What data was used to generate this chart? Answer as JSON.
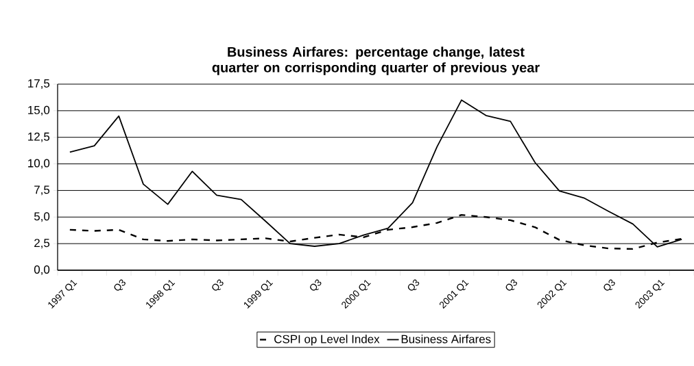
{
  "chart_data": {
    "type": "line",
    "title": "Business Airfares: percentage change, latest quarter on corrisponding quarter of previous year",
    "categories": [
      "1997 Q1",
      null,
      "Q3",
      null,
      "1998 Q1",
      null,
      "Q3",
      null,
      "1999 Q1",
      null,
      "Q3",
      null,
      "2000 Q1",
      null,
      "Q3",
      null,
      "2001 Q1",
      null,
      "Q3",
      null,
      "2002 Q1",
      null,
      "Q3",
      null,
      "2003 Q1",
      null
    ],
    "series": [
      {
        "name": "CSPI op Level Index",
        "color": "#000000",
        "line_style": "dashed",
        "values": [
          3.8,
          3.7,
          3.8,
          2.9,
          2.75,
          2.9,
          2.8,
          2.9,
          3.0,
          2.7,
          3.05,
          3.35,
          3.1,
          3.8,
          4.05,
          4.45,
          5.2,
          5.0,
          4.7,
          4.05,
          2.85,
          2.35,
          2.05,
          2.0,
          2.6,
          2.95
        ]
      },
      {
        "name": "Business Airfares",
        "color": "#000000",
        "line_style": "solid",
        "values": [
          11.1,
          11.7,
          14.5,
          8.1,
          6.2,
          9.3,
          7.05,
          6.65,
          4.6,
          2.5,
          2.25,
          2.5,
          3.3,
          3.95,
          6.35,
          11.6,
          16.0,
          14.55,
          14.0,
          10.15,
          7.45,
          6.8,
          5.55,
          4.35,
          2.2,
          2.9
        ]
      }
    ],
    "ylim": [
      0,
      17.5
    ],
    "yticks": [
      {
        "value": 0,
        "label": "0,0"
      },
      {
        "value": 2.5,
        "label": "2,5"
      },
      {
        "value": 5,
        "label": "5,0"
      },
      {
        "value": 7.5,
        "label": "7,5"
      },
      {
        "value": 10,
        "label": "10,0"
      },
      {
        "value": 12.5,
        "label": "12,5"
      },
      {
        "value": 15,
        "label": "15,0"
      },
      {
        "value": 17.5,
        "label": "17,5"
      }
    ],
    "grid": "y",
    "legend": "bottom",
    "marker": "none"
  }
}
